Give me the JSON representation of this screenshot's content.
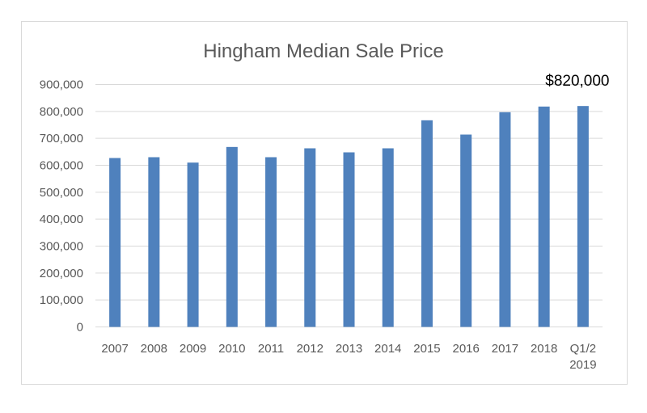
{
  "chart_data": {
    "type": "bar",
    "title": "Hingham Median Sale Price",
    "xlabel": "",
    "ylabel": "",
    "categories": [
      "2007",
      "2008",
      "2009",
      "2010",
      "2011",
      "2012",
      "2013",
      "2014",
      "2015",
      "2016",
      "2017",
      "2018",
      "Q1/2 2019"
    ],
    "category_lines": [
      [
        "2007"
      ],
      [
        "2008"
      ],
      [
        "2009"
      ],
      [
        "2010"
      ],
      [
        "2011"
      ],
      [
        "2012"
      ],
      [
        "2013"
      ],
      [
        "2014"
      ],
      [
        "2015"
      ],
      [
        "2016"
      ],
      [
        "2017"
      ],
      [
        "2018"
      ],
      [
        "Q1/2",
        "2019"
      ]
    ],
    "values": [
      627000,
      630000,
      610000,
      668000,
      630000,
      663000,
      648000,
      663000,
      767000,
      714000,
      797000,
      818000,
      820000
    ],
    "ylim": [
      0,
      900000
    ],
    "yticks": [
      0,
      100000,
      200000,
      300000,
      400000,
      500000,
      600000,
      700000,
      800000,
      900000
    ],
    "ytick_labels": [
      "0",
      "100,000",
      "200,000",
      "300,000",
      "400,000",
      "500,000",
      "600,000",
      "700,000",
      "800,000",
      "900,000"
    ],
    "grid": true,
    "legend": "none",
    "annotations": [
      {
        "text": "$820,000",
        "category": "Q1/2 2019"
      }
    ],
    "colors": {
      "bar": "#4f81bd",
      "grid": "#d9d9d9",
      "text": "#595959"
    }
  }
}
